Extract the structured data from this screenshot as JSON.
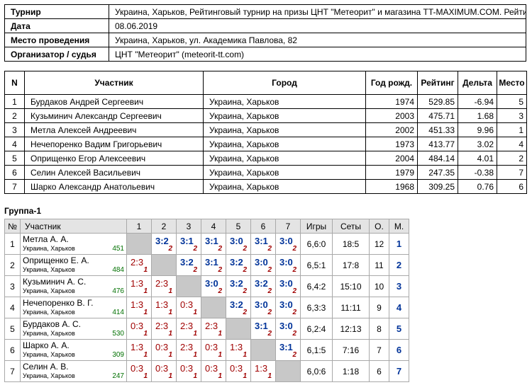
{
  "info": [
    {
      "key": "Турнир",
      "value": "Украина, Харьков, Рейтинговый турнир на призы ЦНТ \"Метеорит\" и магазина TT-MAXIMUM.COM. Рейтинг"
    },
    {
      "key": "Дата",
      "value": "08.06.2019"
    },
    {
      "key": "Место проведения",
      "value": "Украина, Харьков, ул. Академика Павлова, 82"
    },
    {
      "key": "Организатор / судья",
      "value": "ЦНТ \"Метеорит\" (meteorit-tt.com)"
    }
  ],
  "participants": {
    "headers": [
      "N",
      "Участник",
      "Город",
      "Год рожд.",
      "Рейтинг",
      "Дельта",
      "Место"
    ],
    "rows": [
      [
        "1",
        "Бурдаков Андрей Сергеевич",
        "Украина, Харьков",
        "1974",
        "529.85",
        "-6.94",
        "5"
      ],
      [
        "2",
        "Кузьминич Александр Сергеевич",
        "Украина, Харьков",
        "2003",
        "475.71",
        "1.68",
        "3"
      ],
      [
        "3",
        "Метла Алексей Андреевич",
        "Украина, Харьков",
        "2002",
        "451.33",
        "9.96",
        "1"
      ],
      [
        "4",
        "Нечепоренко Вадим Григорьевич",
        "Украина, Харьков",
        "1973",
        "413.77",
        "3.02",
        "4"
      ],
      [
        "5",
        "Оприщенко Егор Алексеевич",
        "Украина, Харьков",
        "2004",
        "484.14",
        "4.01",
        "2"
      ],
      [
        "6",
        "Селин Алексей Васильевич",
        "Украина, Харьков",
        "1979",
        "247.35",
        "-0.38",
        "7"
      ],
      [
        "7",
        "Шарко Александр Анатольевич",
        "Украина, Харьков",
        "1968",
        "309.25",
        "0.76",
        "6"
      ]
    ]
  },
  "group": {
    "title": "Группа-1",
    "headers": {
      "no": "№",
      "player": "Участник",
      "cols": [
        "1",
        "2",
        "3",
        "4",
        "5",
        "6",
        "7"
      ],
      "games": "Игры",
      "sets": "Сеты",
      "o": "О.",
      "m": "М."
    },
    "rows": [
      {
        "n": "1",
        "name": "Метла А. А.",
        "city": "Украина, Харьков",
        "rating": "451",
        "cells": [
          null,
          {
            "s": "3:2",
            "p": "2",
            "w": true
          },
          {
            "s": "3:1",
            "p": "2",
            "w": true
          },
          {
            "s": "3:1",
            "p": "2",
            "w": true
          },
          {
            "s": "3:0",
            "p": "2",
            "w": true
          },
          {
            "s": "3:1",
            "p": "2",
            "w": true
          },
          {
            "s": "3:0",
            "p": "2",
            "w": true
          }
        ],
        "games": "6,6:0",
        "sets": "18:5",
        "o": "12",
        "m": "1"
      },
      {
        "n": "2",
        "name": "Оприщенко Е. А.",
        "city": "Украина, Харьков",
        "rating": "484",
        "cells": [
          {
            "s": "2:3",
            "p": "1",
            "w": false
          },
          null,
          {
            "s": "3:2",
            "p": "2",
            "w": true
          },
          {
            "s": "3:1",
            "p": "2",
            "w": true
          },
          {
            "s": "3:2",
            "p": "2",
            "w": true
          },
          {
            "s": "3:0",
            "p": "2",
            "w": true
          },
          {
            "s": "3:0",
            "p": "2",
            "w": true
          }
        ],
        "games": "6,5:1",
        "sets": "17:8",
        "o": "11",
        "m": "2"
      },
      {
        "n": "3",
        "name": "Кузьминич А. С.",
        "city": "Украина, Харьков",
        "rating": "476",
        "cells": [
          {
            "s": "1:3",
            "p": "1",
            "w": false
          },
          {
            "s": "2:3",
            "p": "1",
            "w": false
          },
          null,
          {
            "s": "3:0",
            "p": "2",
            "w": true
          },
          {
            "s": "3:2",
            "p": "2",
            "w": true
          },
          {
            "s": "3:2",
            "p": "2",
            "w": true
          },
          {
            "s": "3:0",
            "p": "2",
            "w": true
          }
        ],
        "games": "6,4:2",
        "sets": "15:10",
        "o": "10",
        "m": "3"
      },
      {
        "n": "4",
        "name": "Нечепоренко В. Г.",
        "city": "Украина, Харьков",
        "rating": "414",
        "cells": [
          {
            "s": "1:3",
            "p": "1",
            "w": false
          },
          {
            "s": "1:3",
            "p": "1",
            "w": false
          },
          {
            "s": "0:3",
            "p": "1",
            "w": false
          },
          null,
          {
            "s": "3:2",
            "p": "2",
            "w": true
          },
          {
            "s": "3:0",
            "p": "2",
            "w": true
          },
          {
            "s": "3:0",
            "p": "2",
            "w": true
          }
        ],
        "games": "6,3:3",
        "sets": "11:11",
        "o": "9",
        "m": "4"
      },
      {
        "n": "5",
        "name": "Бурдаков А. С.",
        "city": "Украина, Харьков",
        "rating": "530",
        "cells": [
          {
            "s": "0:3",
            "p": "1",
            "w": false
          },
          {
            "s": "2:3",
            "p": "1",
            "w": false
          },
          {
            "s": "2:3",
            "p": "1",
            "w": false
          },
          {
            "s": "2:3",
            "p": "1",
            "w": false
          },
          null,
          {
            "s": "3:1",
            "p": "2",
            "w": true
          },
          {
            "s": "3:0",
            "p": "2",
            "w": true
          }
        ],
        "games": "6,2:4",
        "sets": "12:13",
        "o": "8",
        "m": "5"
      },
      {
        "n": "6",
        "name": "Шарко А. А.",
        "city": "Украина, Харьков",
        "rating": "309",
        "cells": [
          {
            "s": "1:3",
            "p": "1",
            "w": false
          },
          {
            "s": "0:3",
            "p": "1",
            "w": false
          },
          {
            "s": "2:3",
            "p": "1",
            "w": false
          },
          {
            "s": "0:3",
            "p": "1",
            "w": false
          },
          {
            "s": "1:3",
            "p": "1",
            "w": false
          },
          null,
          {
            "s": "3:1",
            "p": "2",
            "w": true
          }
        ],
        "games": "6,1:5",
        "sets": "7:16",
        "o": "7",
        "m": "6"
      },
      {
        "n": "7",
        "name": "Селин А. В.",
        "city": "Украина, Харьков",
        "rating": "247",
        "cells": [
          {
            "s": "0:3",
            "p": "1",
            "w": false
          },
          {
            "s": "0:3",
            "p": "1",
            "w": false
          },
          {
            "s": "0:3",
            "p": "1",
            "w": false
          },
          {
            "s": "0:3",
            "p": "1",
            "w": false
          },
          {
            "s": "0:3",
            "p": "1",
            "w": false
          },
          {
            "s": "1:3",
            "p": "1",
            "w": false
          },
          null
        ],
        "games": "6,0:6",
        "sets": "1:18",
        "o": "6",
        "m": "7"
      }
    ]
  }
}
